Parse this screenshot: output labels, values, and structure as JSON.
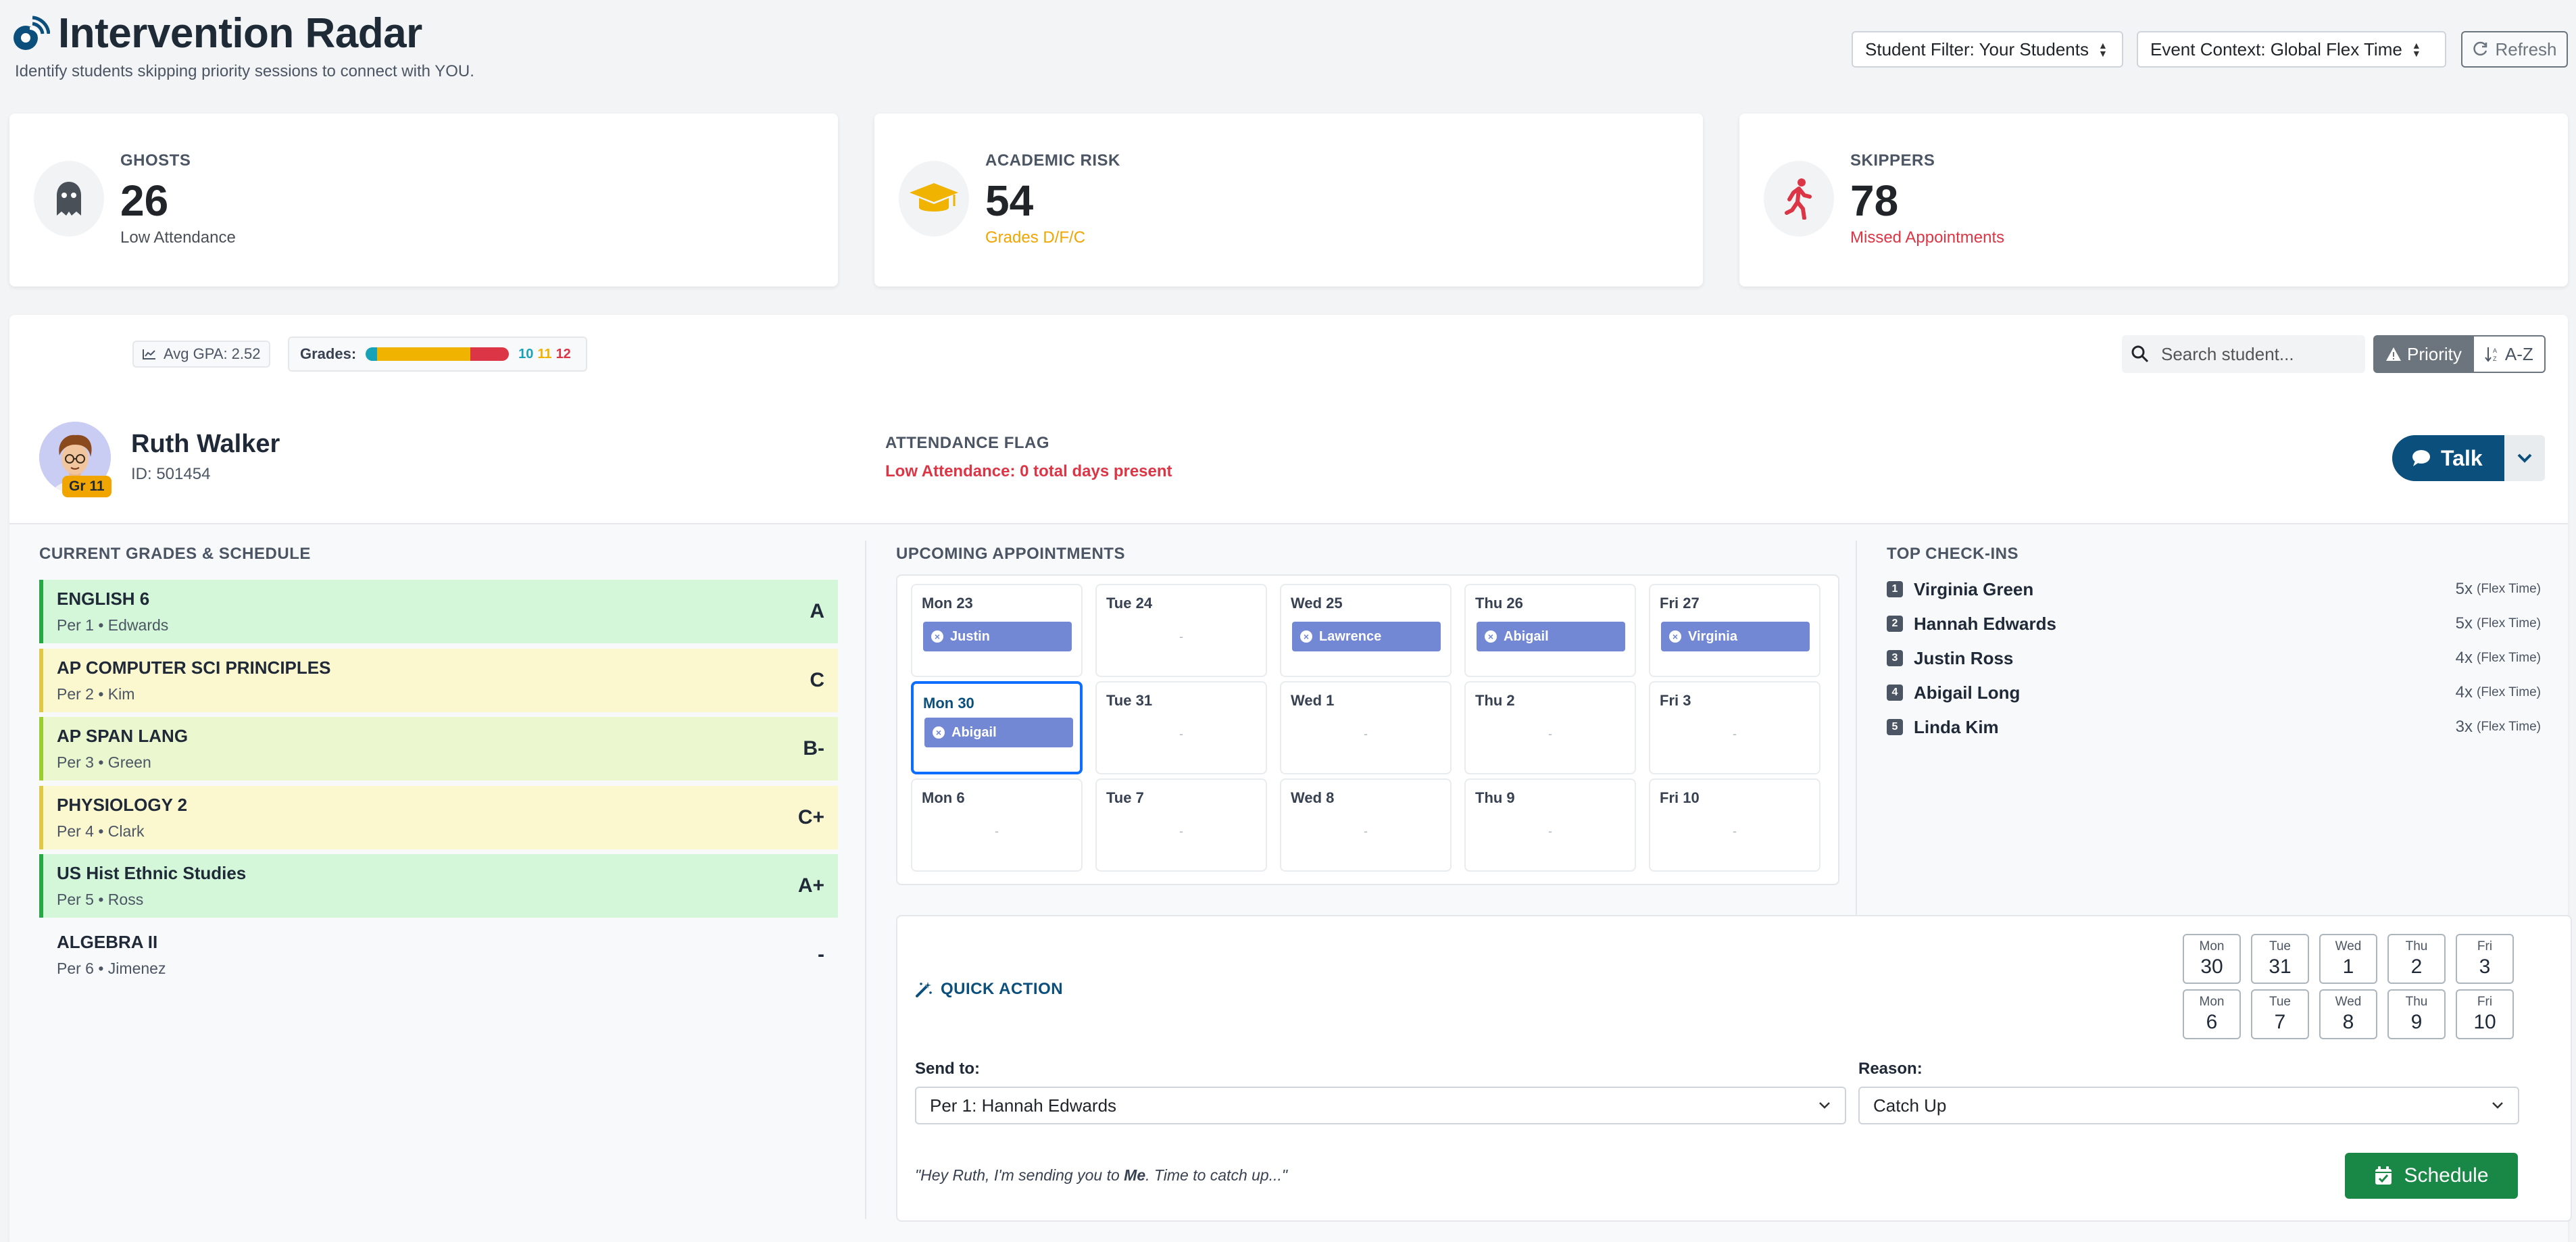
{
  "header": {
    "title": "Intervention Radar",
    "subtitle": "Identify students skipping priority sessions to connect with YOU.",
    "student_filter": "Student Filter: Your Students",
    "event_context": "Event Context: Global Flex Time",
    "refresh_label": "Refresh"
  },
  "stats": [
    {
      "label": "GHOSTS",
      "value": "26",
      "sub": "Low Attendance",
      "sub_color": "#495057",
      "icon": "ghost-icon"
    },
    {
      "label": "ACADEMIC RISK",
      "value": "54",
      "sub": "Grades D/F/C",
      "sub_color": "#f0a500",
      "icon": "graduation-cap-icon"
    },
    {
      "label": "SKIPPERS",
      "value": "78",
      "sub": "Missed Appointments",
      "sub_color": "#dc3545",
      "icon": "walking-person-icon"
    }
  ],
  "toolbar": {
    "avg_gpa": "Avg GPA: 2.52",
    "grades_label": "Grades:",
    "grade_dist": [
      {
        "label": "10",
        "fraction": 0.08,
        "color": "#17a2b8"
      },
      {
        "label": "11",
        "fraction": 0.65,
        "color": "#f0b400"
      },
      {
        "label": "12",
        "fraction": 0.27,
        "color": "#dc3545"
      }
    ],
    "search_placeholder": "Search student...",
    "sort_priority": "Priority",
    "sort_az": "A-Z"
  },
  "student": {
    "name": "Ruth Walker",
    "id": "ID: 501454",
    "grade_badge": "Gr 11",
    "flag_label": "ATTENDANCE FLAG",
    "flag_text": "Low Attendance: 0 total days present",
    "talk_label": "Talk"
  },
  "grades_section": {
    "title": "CURRENT GRADES & SCHEDULE",
    "courses": [
      {
        "name": "ENGLISH 6",
        "meta": "Per 1 • Edwards",
        "grade": "A",
        "bg": "#d4f7d9",
        "border": "#28a745"
      },
      {
        "name": "AP COMPUTER SCI PRINCIPLES",
        "meta": "Per 2 • Kim",
        "grade": "C",
        "bg": "#fbf7cf",
        "border": "#e0c84a"
      },
      {
        "name": "AP SPAN LANG",
        "meta": "Per 3 • Green",
        "grade": "B-",
        "bg": "#eaf7cf",
        "border": "#9acd32"
      },
      {
        "name": "PHYSIOLOGY 2",
        "meta": "Per 4 • Clark",
        "grade": "C+",
        "bg": "#fbf7cf",
        "border": "#e0c84a"
      },
      {
        "name": "US Hist Ethnic Studies",
        "meta": "Per 5 • Ross",
        "grade": "A+",
        "bg": "#d4f7d9",
        "border": "#28a745"
      },
      {
        "name": "ALGEBRA II",
        "meta": "Per 6 • Jimenez",
        "grade": "-",
        "bg": "transparent",
        "border": "transparent"
      }
    ]
  },
  "appointments": {
    "title": "UPCOMING APPOINTMENTS",
    "weeks": [
      [
        {
          "day": "Mon 23",
          "appt": "Justin"
        },
        {
          "day": "Tue 24",
          "appt": null
        },
        {
          "day": "Wed 25",
          "appt": "Lawrence"
        },
        {
          "day": "Thu 26",
          "appt": "Abigail"
        },
        {
          "day": "Fri 27",
          "appt": "Virginia"
        }
      ],
      [
        {
          "day": "Mon 30",
          "appt": "Abigail",
          "selected": true
        },
        {
          "day": "Tue 31",
          "appt": null
        },
        {
          "day": "Wed 1",
          "appt": null
        },
        {
          "day": "Thu 2",
          "appt": null
        },
        {
          "day": "Fri 3",
          "appt": null
        }
      ],
      [
        {
          "day": "Mon 6",
          "appt": null
        },
        {
          "day": "Tue 7",
          "appt": null
        },
        {
          "day": "Wed 8",
          "appt": null
        },
        {
          "day": "Thu 9",
          "appt": null
        },
        {
          "day": "Fri 10",
          "appt": null
        }
      ]
    ],
    "empty_marker": "-"
  },
  "checkins": {
    "title": "TOP CHECK-INS",
    "items": [
      {
        "rank": "1",
        "name": "Virginia Green",
        "count": "5x",
        "ctx": "(Flex Time)"
      },
      {
        "rank": "2",
        "name": "Hannah Edwards",
        "count": "5x",
        "ctx": "(Flex Time)"
      },
      {
        "rank": "3",
        "name": "Justin Ross",
        "count": "4x",
        "ctx": "(Flex Time)"
      },
      {
        "rank": "4",
        "name": "Abigail Long",
        "count": "4x",
        "ctx": "(Flex Time)"
      },
      {
        "rank": "5",
        "name": "Linda Kim",
        "count": "3x",
        "ctx": "(Flex Time)"
      }
    ]
  },
  "quick_action": {
    "title": "QUICK ACTION",
    "dates": [
      {
        "dow": "Mon",
        "num": "30"
      },
      {
        "dow": "Tue",
        "num": "31"
      },
      {
        "dow": "Wed",
        "num": "1"
      },
      {
        "dow": "Thu",
        "num": "2"
      },
      {
        "dow": "Fri",
        "num": "3"
      },
      {
        "dow": "Mon",
        "num": "6"
      },
      {
        "dow": "Tue",
        "num": "7"
      },
      {
        "dow": "Wed",
        "num": "8"
      },
      {
        "dow": "Thu",
        "num": "9"
      },
      {
        "dow": "Fri",
        "num": "10"
      }
    ],
    "send_to_label": "Send to:",
    "send_to_value": "Per 1: Hannah Edwards",
    "reason_label": "Reason:",
    "reason_value": "Catch Up",
    "message_pre": "\"Hey Ruth, I'm sending you to ",
    "message_bold": "Me",
    "message_post": ". Time to catch up...\"",
    "schedule_label": "Schedule"
  }
}
